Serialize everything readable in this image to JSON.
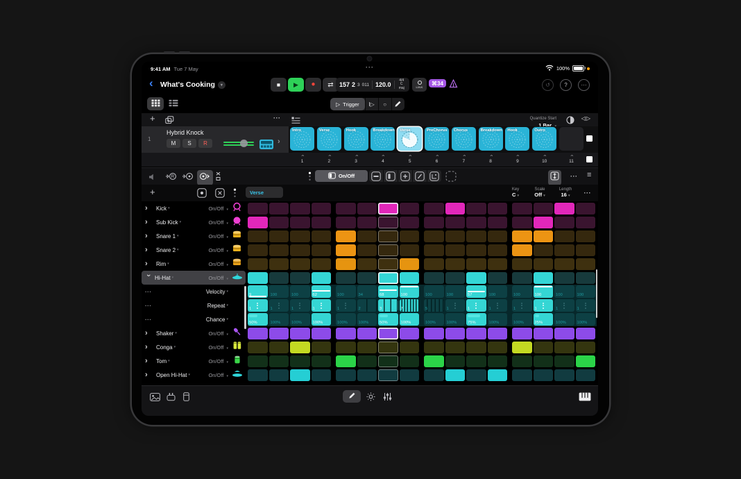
{
  "icons": {
    "plus": "+",
    "more": "···",
    "back": "‹",
    "chevron_right": "›",
    "chevron_down": "▾",
    "cycle": "⇄",
    "play": "▶",
    "trigger_play": "▷",
    "stop_sq": "■",
    "record_dot": "●",
    "hamburger": "≡",
    "help": "?",
    "undo": "↺",
    "pipe_play": "I▷",
    "circle": "○",
    "flip": "◁▷"
  },
  "status": {
    "time": "9:41 AM",
    "date": "Tue 7 May",
    "battery": "100%"
  },
  "transport": {
    "title": "What's Cooking",
    "bar": "157",
    "beat": "2",
    "division": "3",
    "tick": "011",
    "tempo": "120.0",
    "time_sig": "4/4",
    "key": "C maj",
    "link_label": "LINK",
    "badge": "⌘34"
  },
  "trigger": {
    "label": "Trigger"
  },
  "scene_header": {
    "quantize_label": "Quantize Start",
    "quantize_value": "1 Bar"
  },
  "track": {
    "number": "1",
    "name": "Hybrid Knock",
    "mute": "M",
    "solo": "S",
    "record": "R"
  },
  "scenes": {
    "selected_index": 4,
    "tiles": [
      {
        "label": "Intro",
        "number": "1"
      },
      {
        "label": "Verse",
        "number": "2"
      },
      {
        "label": "Hook",
        "number": "3"
      },
      {
        "label": "Breakdown",
        "number": "4"
      },
      {
        "label": "Verse",
        "number": "5"
      },
      {
        "label": "PreChorus",
        "number": "6"
      },
      {
        "label": "Chorus",
        "number": "7"
      },
      {
        "label": "Breakdown",
        "number": "8"
      },
      {
        "label": "Hook",
        "number": "9"
      },
      {
        "label": "Outro",
        "number": "10"
      },
      {
        "label": "",
        "number": "11"
      }
    ]
  },
  "editor": {
    "mode_label": "On/Off",
    "pattern_name": "Verse",
    "key_label": "Key",
    "key_value": "C",
    "scale_label": "Scale",
    "scale_value": "Off",
    "length_label": "Length",
    "length_value": "16"
  },
  "grid": {
    "playhead_step": 7,
    "steps_per_group": 4,
    "sub_on": "#35d6d4",
    "sub_off": "#0d4044",
    "rows": [
      {
        "name": "Kick",
        "control": "On/Off",
        "icon": "kick",
        "icon_color": "#ee3fd2",
        "on": "#e227ba",
        "off": "#3a142f",
        "steps": [
          0,
          0,
          0,
          0,
          0,
          0,
          1,
          0,
          0,
          1,
          0,
          0,
          0,
          0,
          1,
          0
        ]
      },
      {
        "name": "Sub Kick",
        "control": "On/Off",
        "icon": "subkick",
        "icon_color": "#ee3fd2",
        "on": "#e227ba",
        "off": "#3a142f",
        "steps": [
          1,
          0,
          0,
          0,
          0,
          0,
          0,
          0,
          0,
          0,
          0,
          0,
          0,
          1,
          0,
          0
        ]
      },
      {
        "name": "Snare 1",
        "control": "On/Off",
        "icon": "snare",
        "icon_color": "#eeb11c",
        "on": "#ec9413",
        "off": "#35280e",
        "steps": [
          0,
          0,
          0,
          0,
          1,
          0,
          0,
          0,
          0,
          0,
          0,
          0,
          1,
          1,
          0,
          0
        ]
      },
      {
        "name": "Snare 2",
        "control": "On/Off",
        "icon": "snare",
        "icon_color": "#eeb11c",
        "on": "#ec9413",
        "off": "#35280e",
        "steps": [
          0,
          0,
          0,
          0,
          1,
          0,
          0,
          0,
          0,
          0,
          0,
          0,
          1,
          0,
          0,
          0
        ]
      },
      {
        "name": "Rim",
        "control": "On/Off",
        "icon": "rim",
        "icon_color": "#e8a018",
        "on": "#e69410",
        "off": "#3e300f",
        "steps": [
          0,
          0,
          0,
          0,
          1,
          0,
          0,
          1,
          0,
          0,
          0,
          0,
          0,
          0,
          0,
          0
        ]
      },
      {
        "name": "Hi-Hat",
        "control": "On/Off",
        "icon": "hihat",
        "icon_color": "#2fd6da",
        "on": "#34d6d6",
        "off": "#173a3c",
        "expanded": true,
        "steps": [
          1,
          0,
          0,
          1,
          0,
          0,
          1,
          1,
          0,
          0,
          1,
          0,
          0,
          1,
          0,
          0
        ]
      },
      {
        "name": "Velocity",
        "type": "velocity",
        "values": [
          9,
          100,
          100,
          62,
          100,
          34,
          68,
          100,
          100,
          100,
          57,
          100,
          100,
          100,
          100,
          100
        ],
        "active": [
          1,
          0,
          0,
          1,
          0,
          0,
          1,
          1,
          0,
          0,
          1,
          0,
          0,
          1,
          0,
          0
        ]
      },
      {
        "name": "Repeat",
        "type": "repeat",
        "values": [
          1,
          1,
          1,
          1,
          1,
          2,
          3,
          7,
          5,
          1,
          1,
          1,
          1,
          1,
          1,
          1
        ],
        "active": [
          1,
          0,
          0,
          1,
          0,
          0,
          1,
          1,
          0,
          0,
          1,
          0,
          0,
          1,
          0,
          0
        ]
      },
      {
        "name": "Chance",
        "type": "chance",
        "values": [
          50,
          100,
          100,
          100,
          100,
          100,
          50,
          100,
          100,
          100,
          75,
          100,
          100,
          25,
          100,
          100
        ],
        "active": [
          1,
          0,
          0,
          1,
          0,
          0,
          1,
          1,
          0,
          0,
          1,
          0,
          0,
          1,
          0,
          0
        ]
      },
      {
        "name": "Shaker",
        "control": "On/Off",
        "icon": "shaker",
        "icon_color": "#a855f0",
        "on": "#8d4be9",
        "off": "#2c1548",
        "steps": [
          1,
          1,
          1,
          1,
          1,
          1,
          1,
          1,
          1,
          1,
          1,
          1,
          1,
          1,
          1,
          1
        ]
      },
      {
        "name": "Conga",
        "control": "On/Off",
        "icon": "conga",
        "icon_color": "#d8e83c",
        "on": "#c3d922",
        "off": "#34350f",
        "steps": [
          0,
          0,
          1,
          0,
          0,
          0,
          0,
          0,
          0,
          0,
          0,
          0,
          1,
          0,
          0,
          0
        ]
      },
      {
        "name": "Tom",
        "control": "On/Off",
        "icon": "tom",
        "icon_color": "#3ad648",
        "on": "#2bd348",
        "off": "#123019",
        "steps": [
          0,
          0,
          0,
          0,
          1,
          0,
          0,
          0,
          1,
          0,
          0,
          0,
          0,
          0,
          0,
          1
        ]
      },
      {
        "name": "Open Hi-Hat",
        "control": "On/Off",
        "icon": "openhh",
        "icon_color": "#2fd6da",
        "on": "#25ced4",
        "off": "#113b40",
        "steps": [
          0,
          0,
          1,
          0,
          0,
          0,
          0,
          0,
          0,
          1,
          0,
          1,
          0,
          0,
          0,
          0
        ]
      }
    ]
  }
}
